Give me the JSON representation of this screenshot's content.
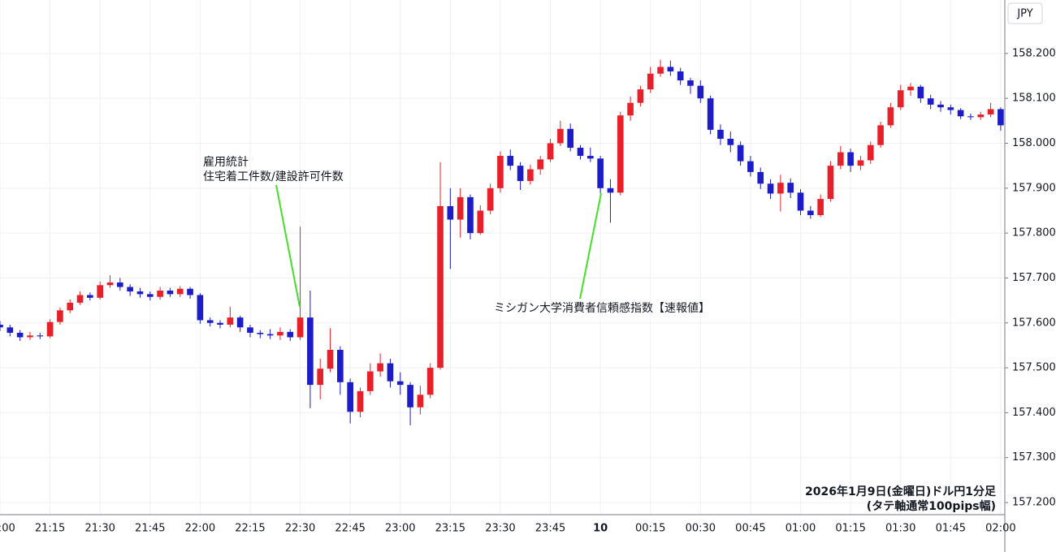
{
  "chart_data": {
    "type": "candlestick",
    "currency_label": "JPY",
    "annotations": [
      {
        "lines": [
          "雇用統計",
          "住宅着工件数/建設許可件数"
        ]
      },
      {
        "lines": [
          "ミシガン大学消費者信頼感指数【速報値】"
        ]
      }
    ],
    "note_lines": [
      "2026年1月9日(金曜日)ドル円1分足",
      "(タテ軸通常100pips幅)"
    ],
    "up_color": "#e8202a",
    "down_color": "#1c1cc8",
    "annotation_color": "#44e02a",
    "grid": true,
    "xlim": [
      0,
      301
    ],
    "xticks": [
      {
        "value": 0,
        "label": "21:00"
      },
      {
        "value": 15,
        "label": "21:15"
      },
      {
        "value": 30,
        "label": "21:30"
      },
      {
        "value": 45,
        "label": "21:45"
      },
      {
        "value": 60,
        "label": "22:00"
      },
      {
        "value": 75,
        "label": "22:15"
      },
      {
        "value": 90,
        "label": "22:30"
      },
      {
        "value": 105,
        "label": "22:45"
      },
      {
        "value": 120,
        "label": "23:00"
      },
      {
        "value": 135,
        "label": "23:15"
      },
      {
        "value": 150,
        "label": "23:30"
      },
      {
        "value": 165,
        "label": "23:45"
      },
      {
        "value": 180,
        "label": "10",
        "bold": true
      },
      {
        "value": 195,
        "label": "00:15"
      },
      {
        "value": 210,
        "label": "00:30"
      },
      {
        "value": 225,
        "label": "00:45"
      },
      {
        "value": 240,
        "label": "01:00"
      },
      {
        "value": 255,
        "label": "01:15"
      },
      {
        "value": 270,
        "label": "01:30"
      },
      {
        "value": 285,
        "label": "01:45"
      },
      {
        "value": 300,
        "label": "02:00"
      }
    ],
    "ylim": [
      157.173,
      158.319
    ],
    "yticks": [
      {
        "value": 157.2,
        "label": "157.200"
      },
      {
        "value": 157.3,
        "label": "157.300"
      },
      {
        "value": 157.4,
        "label": "157.400"
      },
      {
        "value": 157.5,
        "label": "157.500"
      },
      {
        "value": 157.6,
        "label": "157.600"
      },
      {
        "value": 157.7,
        "label": "157.700"
      },
      {
        "value": 157.8,
        "label": "157.800"
      },
      {
        "value": 157.9,
        "label": "157.900"
      },
      {
        "value": 158.0,
        "label": "158.000"
      },
      {
        "value": 158.1,
        "label": "158.100"
      },
      {
        "value": 158.2,
        "label": "158.200"
      }
    ],
    "x": [
      0,
      3,
      6,
      9,
      12,
      15,
      18,
      21,
      24,
      27,
      30,
      33,
      36,
      39,
      42,
      45,
      48,
      51,
      54,
      57,
      60,
      63,
      66,
      69,
      72,
      75,
      78,
      81,
      84,
      87,
      90,
      93,
      96,
      99,
      102,
      105,
      108,
      111,
      114,
      117,
      120,
      123,
      126,
      129,
      132,
      135,
      138,
      141,
      144,
      147,
      150,
      153,
      156,
      159,
      162,
      165,
      168,
      171,
      174,
      177,
      180,
      183,
      186,
      189,
      192,
      195,
      198,
      201,
      204,
      207,
      210,
      213,
      216,
      219,
      222,
      225,
      228,
      231,
      234,
      237,
      240,
      243,
      246,
      249,
      252,
      255,
      258,
      261,
      264,
      267,
      270,
      273,
      276,
      279,
      282,
      285,
      288,
      291,
      294,
      297,
      300
    ],
    "open": [
      157.596,
      157.59,
      157.578,
      157.568,
      157.572,
      157.57,
      157.602,
      157.628,
      157.645,
      157.662,
      157.656,
      157.684,
      157.69,
      157.68,
      157.67,
      157.664,
      157.658,
      157.672,
      157.664,
      157.676,
      157.662,
      157.606,
      157.6,
      157.596,
      157.612,
      157.59,
      157.578,
      157.575,
      157.572,
      157.58,
      157.568,
      157.612,
      157.462,
      157.498,
      157.54,
      157.468,
      157.402,
      157.448,
      157.492,
      157.51,
      157.47,
      157.462,
      157.412,
      157.44,
      157.5,
      157.86,
      157.83,
      157.88,
      157.8,
      157.85,
      157.9,
      157.972,
      157.95,
      157.916,
      157.942,
      157.964,
      158.0,
      158.032,
      157.99,
      157.972,
      157.966,
      157.9,
      157.89,
      158.062,
      158.09,
      158.12,
      158.155,
      158.17,
      158.16,
      158.14,
      158.128,
      158.1,
      158.03,
      158.01,
      157.996,
      157.96,
      157.936,
      157.91,
      157.888,
      157.912,
      157.89,
      157.85,
      157.84,
      157.876,
      157.95,
      157.98,
      157.95,
      157.962,
      157.996,
      158.04,
      158.08,
      158.118,
      158.126,
      158.1,
      158.086,
      158.08,
      158.074,
      158.06,
      158.058,
      158.064,
      158.076
    ],
    "high": [
      157.604,
      157.596,
      157.584,
      157.58,
      157.578,
      157.608,
      157.634,
      157.652,
      157.67,
      157.668,
      157.692,
      157.706,
      157.7,
      157.686,
      157.678,
      157.67,
      157.68,
      157.678,
      157.682,
      157.68,
      157.666,
      157.612,
      157.606,
      157.636,
      157.616,
      157.596,
      157.584,
      157.586,
      157.59,
      157.586,
      157.814,
      157.672,
      157.52,
      157.588,
      157.548,
      157.476,
      157.456,
      157.51,
      157.532,
      157.52,
      157.49,
      157.468,
      157.46,
      157.51,
      157.958,
      157.9,
      157.9,
      157.886,
      157.862,
      157.91,
      157.982,
      157.986,
      157.958,
      157.952,
      157.972,
      158.01,
      158.05,
      158.044,
      157.996,
      157.99,
      157.972,
      157.92,
      158.07,
      158.104,
      158.128,
      158.17,
      158.186,
      158.184,
      158.168,
      158.146,
      158.14,
      158.106,
      158.042,
      158.026,
      158.004,
      157.972,
      157.946,
      157.92,
      157.93,
      157.922,
      157.898,
      157.86,
      157.886,
      157.96,
      157.994,
      157.988,
      157.972,
      158.004,
      158.048,
      158.09,
      158.13,
      158.134,
      158.13,
      158.108,
      158.094,
      158.086,
      158.078,
      158.066,
      158.07,
      158.09,
      158.08
    ],
    "low": [
      157.582,
      157.57,
      157.56,
      157.562,
      157.564,
      157.566,
      157.596,
      157.622,
      157.64,
      157.65,
      157.652,
      157.678,
      157.672,
      157.66,
      157.656,
      157.65,
      157.652,
      157.658,
      157.658,
      157.654,
      157.598,
      157.592,
      157.588,
      157.59,
      157.58,
      157.568,
      157.566,
      157.564,
      157.562,
      157.56,
      157.562,
      157.41,
      157.43,
      157.49,
      157.44,
      157.376,
      157.39,
      157.44,
      157.48,
      157.456,
      157.44,
      157.372,
      157.396,
      157.432,
      157.496,
      157.72,
      157.79,
      157.786,
      157.796,
      157.842,
      157.89,
      157.94,
      157.896,
      157.908,
      157.93,
      157.958,
      157.994,
      157.982,
      157.964,
      157.958,
      157.888,
      157.823,
      157.884,
      158.05,
      158.082,
      158.112,
      158.148,
      158.15,
      158.13,
      158.11,
      158.09,
      158.02,
      157.996,
      157.98,
      157.95,
      157.926,
      157.898,
      157.876,
      157.848,
      157.878,
      157.84,
      157.832,
      157.836,
      157.87,
      157.942,
      157.936,
      157.94,
      157.954,
      157.99,
      158.034,
      158.074,
      158.106,
      158.09,
      158.076,
      158.07,
      158.064,
      158.054,
      158.052,
      158.052,
      158.058,
      158.028
    ],
    "close": [
      157.59,
      157.578,
      157.568,
      157.572,
      157.57,
      157.602,
      157.628,
      157.645,
      157.662,
      157.656,
      157.684,
      157.69,
      157.68,
      157.67,
      157.664,
      157.658,
      157.672,
      157.664,
      157.676,
      157.662,
      157.606,
      157.6,
      157.596,
      157.612,
      157.59,
      157.578,
      157.575,
      157.572,
      157.58,
      157.568,
      157.612,
      157.462,
      157.498,
      157.54,
      157.468,
      157.402,
      157.448,
      157.492,
      157.51,
      157.47,
      157.462,
      157.412,
      157.44,
      157.5,
      157.86,
      157.83,
      157.88,
      157.8,
      157.85,
      157.9,
      157.972,
      157.95,
      157.916,
      157.942,
      157.964,
      158.0,
      158.032,
      157.99,
      157.972,
      157.966,
      157.9,
      157.89,
      158.062,
      158.09,
      158.12,
      158.155,
      158.17,
      158.16,
      158.14,
      158.128,
      158.1,
      158.03,
      158.01,
      157.996,
      157.96,
      157.936,
      157.91,
      157.888,
      157.912,
      157.89,
      157.85,
      157.84,
      157.876,
      157.95,
      157.98,
      157.95,
      157.962,
      157.996,
      158.04,
      158.08,
      158.118,
      158.126,
      158.1,
      158.086,
      158.08,
      158.074,
      158.06,
      158.058,
      158.064,
      158.076,
      158.04
    ]
  }
}
